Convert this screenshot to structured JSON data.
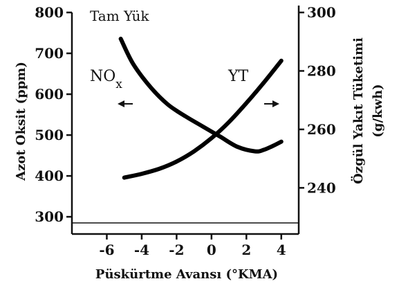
{
  "chart_data": {
    "type": "line",
    "title": "",
    "annotations": {
      "load_condition": "Tam Yük"
    },
    "xlabel": "Püskürtme Avansı (°KMA)",
    "ylabel_left": "Azot Oksit (ppm)",
    "ylabel_right_line1": "Özgül Yakıt Tüketimi",
    "ylabel_right_line2": "(g/kwh)",
    "xlim": [
      -8,
      5
    ],
    "x_ticks": [
      -6,
      -4,
      -2,
      0,
      2,
      4
    ],
    "x_tick_labels": [
      "-6",
      "-4",
      "-2",
      "0",
      "2",
      "4"
    ],
    "ylim_left": [
      285,
      800
    ],
    "y_ticks_left": [
      300,
      400,
      500,
      600,
      700,
      800
    ],
    "y_tick_labels_left": [
      "300",
      "400",
      "500",
      "600",
      "700",
      "800"
    ],
    "ylim_right": [
      228,
      300
    ],
    "y_ticks_right": [
      240,
      260,
      280,
      300
    ],
    "y_tick_labels_right": [
      "240",
      "260",
      "280",
      "300"
    ],
    "series": [
      {
        "name": "NOx",
        "label_base": "NO",
        "label_sub": "x",
        "axis": "right",
        "arrow": "left",
        "x": [
          -5.0,
          -4.0,
          -3.0,
          -2.0,
          -1.0,
          0.0,
          1.0,
          2.0,
          3.0,
          4.0
        ],
        "values": [
          243.5,
          244.8,
          246.5,
          249.0,
          252.5,
          257.0,
          262.5,
          269.0,
          276.0,
          283.5
        ]
      },
      {
        "name": "YT",
        "label_base": "YT",
        "label_sub": "",
        "axis": "right",
        "arrow": "right",
        "x": [
          -5.2,
          -4.5,
          -3.5,
          -2.5,
          -1.5,
          -0.5,
          0.5,
          1.5,
          2.5,
          3.0,
          3.5,
          4.0
        ],
        "values": [
          291.0,
          282.5,
          274.5,
          268.5,
          264.5,
          261.0,
          257.5,
          254.0,
          252.5,
          253.0,
          254.3,
          255.8
        ]
      }
    ],
    "grid": false,
    "legend": "none"
  }
}
